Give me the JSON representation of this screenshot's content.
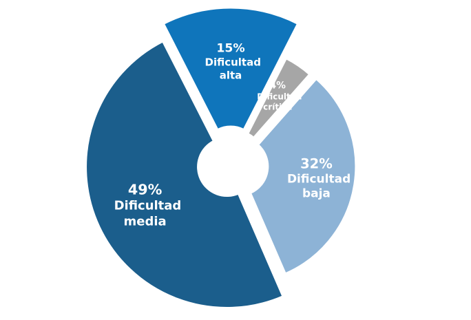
{
  "chart_data": {
    "type": "pie",
    "categories": [
      "Dificultad alta",
      "Dificultad crítica",
      "Dificultad baja",
      "Dificultad media"
    ],
    "values": [
      15,
      4,
      32,
      49
    ],
    "value_labels": [
      "15%",
      "4%",
      "32%",
      "49%"
    ],
    "colors": [
      "#0f75bb",
      "#a6a6a6",
      "#8db3d6",
      "#1b5e8c"
    ]
  }
}
